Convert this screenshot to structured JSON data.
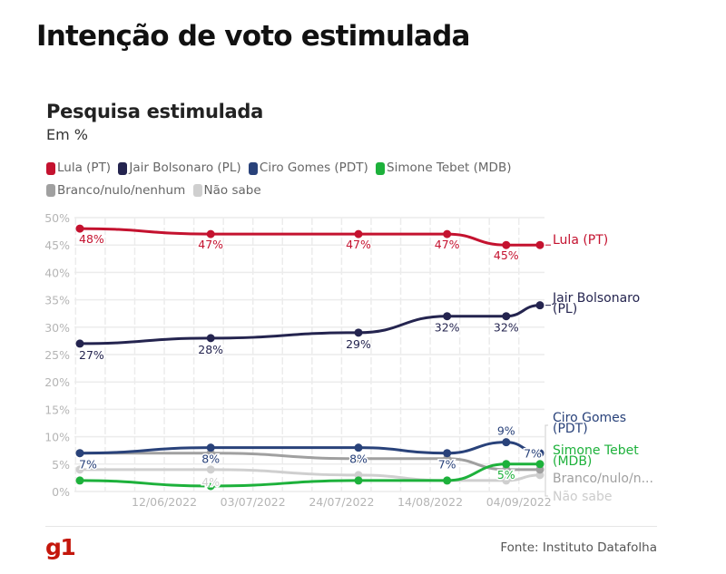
{
  "header": {
    "title": "Intenção de voto estimulada"
  },
  "chart_data": {
    "type": "line",
    "title": "Pesquisa estimulada",
    "subtitle": "Em %",
    "xlabel": "",
    "ylabel": "",
    "ylim": [
      0,
      50
    ],
    "y_ticks": [
      0,
      5,
      10,
      15,
      20,
      25,
      30,
      35,
      40,
      45,
      50
    ],
    "y_tick_labels": [
      "0%",
      "5%",
      "10%",
      "15%",
      "20%",
      "25%",
      "30%",
      "35%",
      "40%",
      "45%",
      "50%"
    ],
    "x_tick_labels": [
      "12/06/2022",
      "03/07/2022",
      "24/07/2022",
      "14/08/2022",
      "04/09/2022"
    ],
    "x_tick_days": [
      20,
      41,
      62,
      83,
      104
    ],
    "x_range_days": [
      -1,
      112
    ],
    "x_origin_date": "23/05/2022",
    "grid": true,
    "legend_position": "top",
    "x_days": [
      0,
      31,
      66,
      87,
      101,
      109
    ],
    "series": [
      {
        "name": "Lula (PT)",
        "end_label": [
          "Lula (PT)"
        ],
        "color": "#c4122f",
        "values": [
          48,
          47,
          47,
          47,
          45,
          45
        ],
        "data_labels": [
          "48%",
          "47%",
          "47%",
          "47%",
          "45%",
          null
        ]
      },
      {
        "name": "Jair Bolsonaro (PL)",
        "end_label": [
          "Jair Bolsonaro",
          "(PL)"
        ],
        "color": "#24244f",
        "values": [
          27,
          28,
          29,
          32,
          32,
          34
        ],
        "data_labels": [
          "27%",
          "28%",
          "29%",
          "32%",
          "32%",
          null
        ]
      },
      {
        "name": "Ciro Gomes (PDT)",
        "end_label": [
          "Ciro Gomes",
          "(PDT)"
        ],
        "color": "#29427a",
        "values": [
          7,
          8,
          8,
          7,
          9,
          7
        ],
        "data_labels": [
          "7%",
          "8%",
          "8%",
          "7%",
          "9%",
          "7%"
        ]
      },
      {
        "name": "Simone Tebet (MDB)",
        "end_label": [
          "Simone Tebet",
          "(MDB)"
        ],
        "color": "#1db13b",
        "values": [
          2,
          1,
          2,
          2,
          5,
          5
        ],
        "data_labels": [
          null,
          null,
          null,
          null,
          "5%",
          null
        ]
      },
      {
        "name": "Branco/nulo/nenhum",
        "end_label": [
          "Branco/nulo/n..."
        ],
        "color": "#a0a0a0",
        "values": [
          7,
          7,
          6,
          6,
          4,
          4
        ],
        "data_labels": [
          null,
          null,
          null,
          null,
          null,
          null
        ]
      },
      {
        "name": "Não sabe",
        "end_label": [
          "Não sabe"
        ],
        "color": "#cfcfcf",
        "values": [
          4,
          4,
          3,
          2,
          2,
          3
        ],
        "data_labels": [
          null,
          "4%",
          null,
          null,
          null,
          null
        ]
      }
    ]
  },
  "footer": {
    "brand": "g1",
    "source": "Fonte: Instituto Datafolha"
  }
}
